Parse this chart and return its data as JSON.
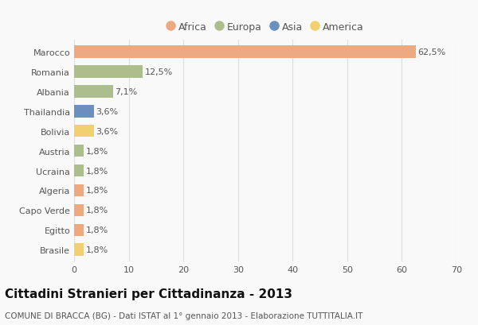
{
  "countries": [
    "Marocco",
    "Romania",
    "Albania",
    "Thailandia",
    "Bolivia",
    "Austria",
    "Ucraina",
    "Algeria",
    "Capo Verde",
    "Egitto",
    "Brasile"
  ],
  "values": [
    62.5,
    12.5,
    7.1,
    3.6,
    3.6,
    1.8,
    1.8,
    1.8,
    1.8,
    1.8,
    1.8
  ],
  "labels": [
    "62,5%",
    "12,5%",
    "7,1%",
    "3,6%",
    "3,6%",
    "1,8%",
    "1,8%",
    "1,8%",
    "1,8%",
    "1,8%",
    "1,8%"
  ],
  "continents": [
    "Africa",
    "Europa",
    "Europa",
    "Asia",
    "America",
    "Europa",
    "Europa",
    "Africa",
    "Africa",
    "Africa",
    "America"
  ],
  "continent_colors": {
    "Africa": "#EDAA80",
    "Europa": "#ABBE8B",
    "Asia": "#6B8FBF",
    "America": "#F0D070"
  },
  "legend_order": [
    "Africa",
    "Europa",
    "Asia",
    "America"
  ],
  "title": "Cittadini Stranieri per Cittadinanza - 2013",
  "subtitle": "COMUNE DI BRACCA (BG) - Dati ISTAT al 1° gennaio 2013 - Elaborazione TUTTITALIA.IT",
  "xlim": [
    0,
    70
  ],
  "xticks": [
    0,
    10,
    20,
    30,
    40,
    50,
    60,
    70
  ],
  "background_color": "#f9f9f9",
  "bar_height": 0.62,
  "title_fontsize": 11,
  "subtitle_fontsize": 7.5,
  "label_fontsize": 8,
  "tick_fontsize": 8,
  "legend_fontsize": 9,
  "text_color": "#555555",
  "title_color": "#111111",
  "grid_color": "#dddddd"
}
